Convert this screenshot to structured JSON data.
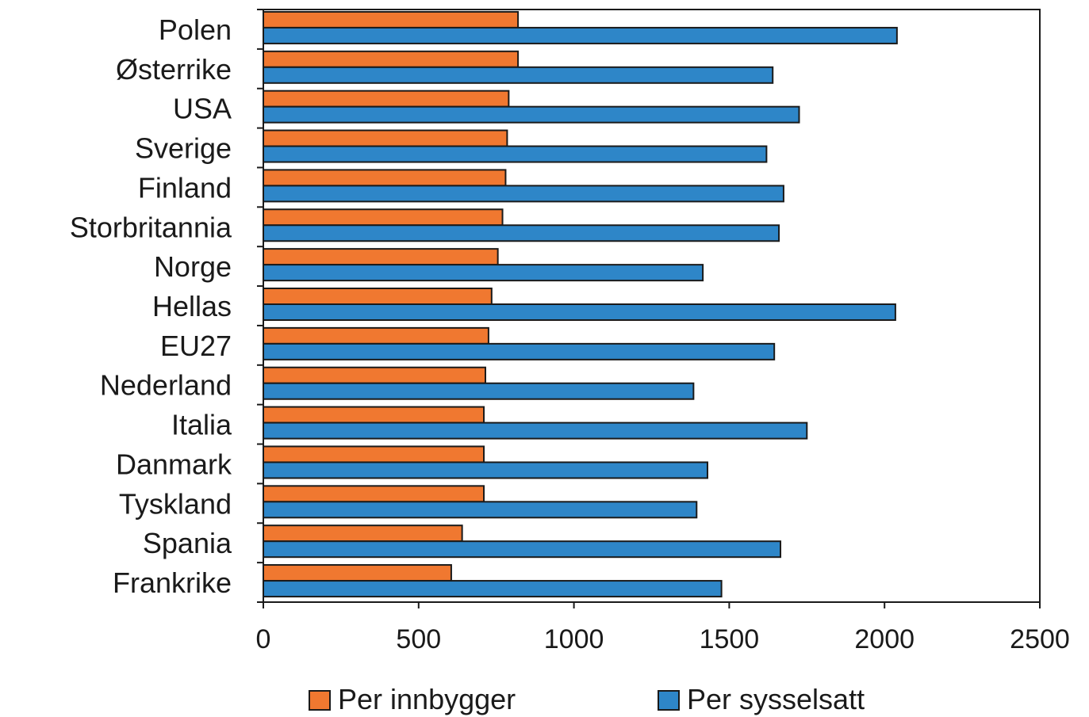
{
  "chart_data": {
    "type": "bar",
    "orientation": "horizontal",
    "categories": [
      "Polen",
      "Østerrike",
      "USA",
      "Sverige",
      "Finland",
      "Storbritannia",
      "Norge",
      "Hellas",
      "EU27",
      "Nederland",
      "Italia",
      "Danmark",
      "Tyskland",
      "Spania",
      "Frankrike"
    ],
    "series": [
      {
        "name": "Per innbygger",
        "color": "#f07830",
        "values": [
          820,
          820,
          790,
          785,
          780,
          770,
          755,
          735,
          725,
          715,
          710,
          710,
          710,
          640,
          605
        ]
      },
      {
        "name": "Per sysselsatt",
        "color": "#2e86c8",
        "values": [
          2040,
          1640,
          1725,
          1620,
          1675,
          1660,
          1415,
          2035,
          1645,
          1385,
          1750,
          1430,
          1395,
          1665,
          1475
        ]
      }
    ],
    "xlim": [
      0,
      2500
    ],
    "xticks": [
      "0",
      "500",
      "1000",
      "1500",
      "2000",
      "2500"
    ],
    "legend_position": "bottom",
    "grid": false
  }
}
